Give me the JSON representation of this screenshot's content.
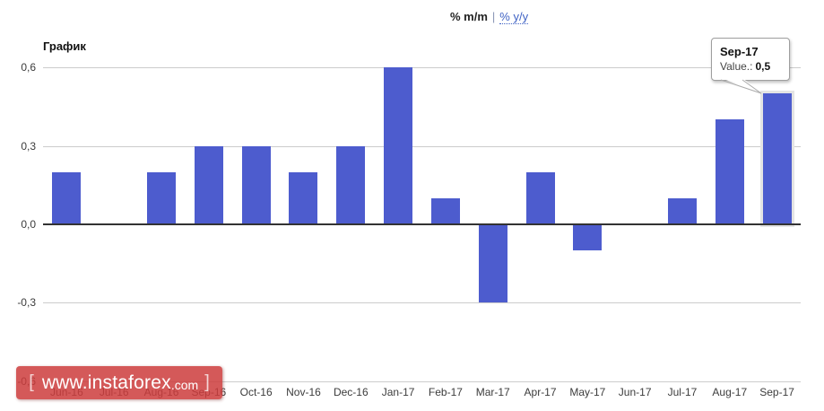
{
  "legend": {
    "mm_label": "% m/m",
    "separator": "|",
    "yy_label": "% y/y"
  },
  "tooltip": {
    "title": "Sep-17",
    "value_label": "Value.:",
    "value": "0,5"
  },
  "watermark": {
    "open_bracket": "[",
    "domain": "www.instaforex",
    "tld": ".com",
    "close_bracket": "]"
  },
  "chart_data": {
    "type": "bar",
    "title": "График",
    "categories": [
      "Jun-16",
      "Jul-16",
      "Aug-16",
      "Sep-16",
      "Oct-16",
      "Nov-16",
      "Dec-16",
      "Jan-17",
      "Feb-17",
      "Mar-17",
      "Apr-17",
      "May-17",
      "Jun-17",
      "Jul-17",
      "Aug-17",
      "Sep-17"
    ],
    "values": [
      0.2,
      0.0,
      0.2,
      0.3,
      0.3,
      0.2,
      0.3,
      0.6,
      0.1,
      -0.3,
      0.2,
      -0.1,
      0.0,
      0.1,
      0.4,
      0.5
    ],
    "xlabel": "",
    "ylabel": "",
    "ylim": [
      -0.6,
      0.6
    ],
    "y_ticks": [
      "0,6",
      "0,3",
      "0,0",
      "-0,3",
      "-0,6"
    ],
    "y_tick_values": [
      0.6,
      0.3,
      0.0,
      -0.3,
      -0.6
    ],
    "grid": true,
    "legend_position": "top",
    "bar_color": "#4d5cce",
    "highlighted_category": "Sep-17",
    "highlight_tooltip": {
      "label": "Sep-17",
      "value": 0.5
    }
  }
}
